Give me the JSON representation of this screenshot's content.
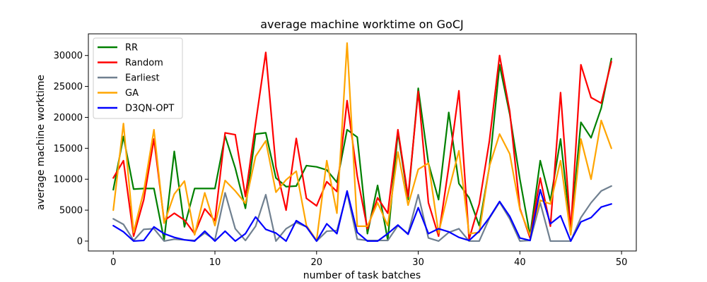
{
  "chart_data": {
    "type": "line",
    "title": "average machine worktime on GoCJ",
    "xlabel": "number of task batches",
    "ylabel": "average machine worktime",
    "xlim": [
      -2.45,
      51.45
    ],
    "ylim": [
      -1600,
      33500
    ],
    "xticks": [
      0,
      10,
      20,
      30,
      40,
      50
    ],
    "yticks": [
      0,
      5000,
      10000,
      15000,
      20000,
      25000,
      30000
    ],
    "grid": false,
    "legend_position": "upper-left",
    "x": [
      0,
      1,
      2,
      3,
      4,
      5,
      6,
      7,
      8,
      9,
      10,
      11,
      12,
      13,
      14,
      15,
      16,
      17,
      18,
      19,
      20,
      21,
      22,
      23,
      24,
      25,
      26,
      27,
      28,
      29,
      30,
      31,
      32,
      33,
      34,
      35,
      36,
      37,
      38,
      39,
      40,
      41,
      42,
      43,
      44,
      45,
      46,
      47,
      48,
      49
    ],
    "series": [
      {
        "name": "RR",
        "color": "#008000",
        "values": [
          8300,
          16900,
          8400,
          8500,
          8500,
          200,
          14500,
          2300,
          8500,
          8500,
          8500,
          17000,
          11800,
          5300,
          17300,
          17500,
          10200,
          8800,
          8900,
          12200,
          12000,
          11500,
          9500,
          18000,
          16800,
          1200,
          9000,
          200,
          17600,
          6700,
          24700,
          12600,
          6700,
          20800,
          9300,
          7000,
          2500,
          12000,
          28500,
          20500,
          10000,
          900,
          13000,
          6500,
          16500,
          1800,
          19200,
          16700,
          21500,
          29500
        ]
      },
      {
        "name": "Random",
        "color": "#ff0000",
        "values": [
          10200,
          13000,
          800,
          6700,
          16500,
          3300,
          4500,
          3400,
          1200,
          5200,
          3300,
          17500,
          17200,
          7200,
          19000,
          30500,
          12000,
          5000,
          16600,
          6900,
          5700,
          9600,
          8000,
          22700,
          10500,
          2000,
          7000,
          4500,
          18000,
          7200,
          24200,
          6200,
          800,
          12000,
          24300,
          300,
          6000,
          16200,
          30000,
          21000,
          5300,
          500,
          10200,
          2400,
          24000,
          1800,
          28500,
          23200,
          22300,
          29000
        ]
      },
      {
        "name": "Earliest",
        "color": "#708090",
        "values": [
          3600,
          2700,
          100,
          1900,
          2000,
          0,
          300,
          200,
          100,
          1300,
          200,
          7800,
          2000,
          100,
          2400,
          7500,
          0,
          2000,
          3000,
          2300,
          0,
          1600,
          1700,
          7800,
          300,
          100,
          100,
          100,
          2500,
          1200,
          7500,
          500,
          0,
          1400,
          2000,
          0,
          0,
          3700,
          6300,
          3600,
          0,
          100,
          6200,
          0,
          0,
          0,
          3800,
          6200,
          8100,
          8900
        ]
      },
      {
        "name": "GA",
        "color": "#ffa500",
        "values": [
          5000,
          19000,
          1400,
          8100,
          18000,
          2900,
          7600,
          9700,
          1000,
          7800,
          2500,
          9800,
          8100,
          6100,
          13700,
          16200,
          7900,
          9900,
          11300,
          2500,
          100,
          13000,
          4500,
          32000,
          2400,
          2400,
          6200,
          2500,
          14400,
          5800,
          11600,
          12600,
          1300,
          8200,
          14600,
          1200,
          1400,
          12100,
          17300,
          14100,
          5100,
          900,
          6600,
          6000,
          13000,
          1000,
          16500,
          10000,
          19500,
          15000
        ]
      },
      {
        "name": "D3QN-OPT",
        "color": "#0000ff",
        "values": [
          2500,
          1500,
          0,
          100,
          2300,
          1200,
          600,
          200,
          0,
          1600,
          0,
          1600,
          0,
          1200,
          3900,
          1900,
          1300,
          0,
          3300,
          2300,
          0,
          2800,
          1200,
          8100,
          1400,
          0,
          0,
          1200,
          2600,
          1100,
          5400,
          1200,
          2000,
          1500,
          600,
          100,
          1600,
          3800,
          6400,
          4000,
          500,
          100,
          8300,
          2800,
          4100,
          0,
          3100,
          3800,
          5500,
          6000
        ]
      }
    ]
  }
}
